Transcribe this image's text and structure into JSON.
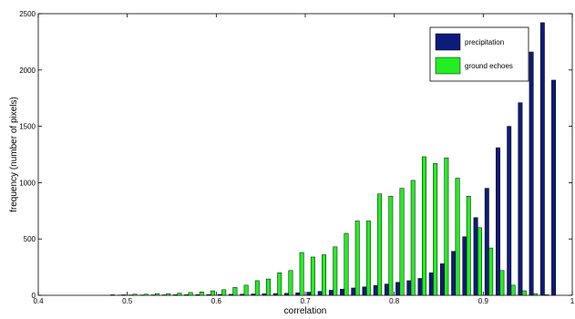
{
  "chart_data": {
    "type": "bar",
    "title": "",
    "xlabel": "correlation",
    "ylabel": "frequency (number of pixels)",
    "xlim": [
      0.4,
      1.0
    ],
    "ylim": [
      0,
      2500
    ],
    "xticks": [
      0.4,
      0.5,
      0.6,
      0.7,
      0.8,
      0.9,
      1.0
    ],
    "xtick_labels": [
      "0.4",
      "0.5",
      "0.6",
      "0.7",
      "0.8",
      "0.9",
      "1"
    ],
    "yticks": [
      0,
      500,
      1000,
      1500,
      2000,
      2500
    ],
    "ytick_labels": [
      "0",
      "500",
      "1000",
      "1500",
      "2000",
      "2500"
    ],
    "bin_width": 0.0125,
    "x": [
      0.4063,
      0.4188,
      0.4313,
      0.4438,
      0.4563,
      0.4688,
      0.4813,
      0.4938,
      0.5063,
      0.5188,
      0.5313,
      0.5438,
      0.5563,
      0.5688,
      0.5813,
      0.5938,
      0.6063,
      0.6188,
      0.6313,
      0.6438,
      0.6563,
      0.6688,
      0.6813,
      0.6938,
      0.7063,
      0.7188,
      0.7313,
      0.7438,
      0.7563,
      0.7688,
      0.7813,
      0.7938,
      0.8063,
      0.8188,
      0.8313,
      0.8438,
      0.8563,
      0.8688,
      0.8813,
      0.8938,
      0.9063,
      0.9188,
      0.9313,
      0.9438,
      0.9563,
      0.9688,
      0.9813,
      0.9938
    ],
    "series": [
      {
        "name": "precipitation",
        "color": "#0d1b7a",
        "values": [
          0,
          0,
          0,
          0,
          0,
          0,
          0,
          2,
          3,
          3,
          4,
          4,
          5,
          5,
          6,
          7,
          8,
          9,
          10,
          12,
          14,
          16,
          18,
          22,
          28,
          35,
          45,
          55,
          65,
          75,
          88,
          100,
          115,
          130,
          150,
          200,
          280,
          390,
          520,
          690,
          950,
          1310,
          1500,
          1710,
          2160,
          2420,
          1910,
          0
        ]
      },
      {
        "name": "ground echoes",
        "color": "#22ee22",
        "values": [
          0,
          0,
          0,
          0,
          0,
          0,
          5,
          5,
          10,
          10,
          15,
          15,
          20,
          25,
          30,
          40,
          50,
          70,
          90,
          130,
          145,
          200,
          220,
          380,
          340,
          360,
          430,
          550,
          660,
          660,
          900,
          880,
          950,
          1020,
          1230,
          1170,
          1220,
          1040,
          880,
          600,
          420,
          220,
          90,
          40,
          15,
          5,
          0,
          0
        ]
      }
    ],
    "legend_position": "top-right",
    "grid": false
  }
}
